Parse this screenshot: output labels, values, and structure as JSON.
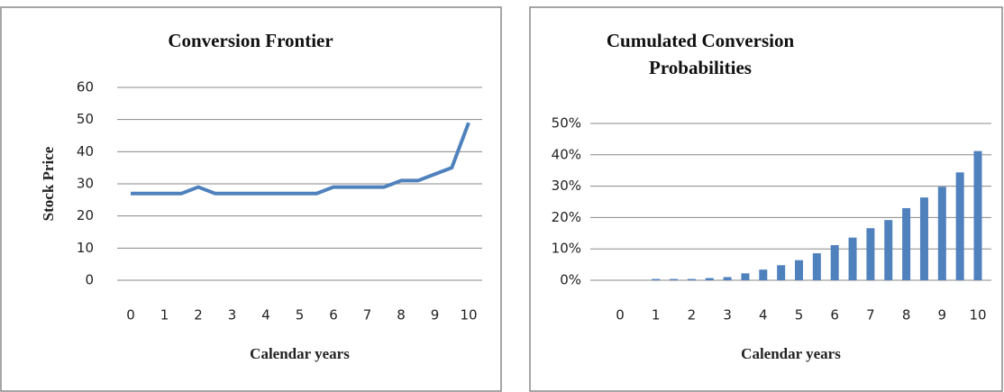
{
  "chart_data": [
    {
      "type": "line",
      "title": "Conversion Frontier",
      "x_label": "Calendar years",
      "y_label": "Stock Price",
      "x": [
        0,
        0.5,
        1,
        1.5,
        2,
        2.5,
        3,
        3.5,
        4,
        4.5,
        5,
        5.5,
        6,
        6.5,
        7,
        7.5,
        8,
        8.5,
        9,
        9.5,
        10
      ],
      "values": [
        27,
        27,
        27,
        27,
        29,
        27,
        27,
        27,
        27,
        27,
        27,
        27,
        29,
        29,
        29,
        29,
        31,
        31,
        33,
        35,
        49
      ],
      "color": "#4f81bd",
      "xlim": [
        0,
        10
      ],
      "xticks": [
        0,
        1,
        2,
        3,
        4,
        5,
        6,
        7,
        8,
        9,
        10
      ],
      "ylim": [
        0,
        60
      ],
      "yticks": [
        0,
        10,
        20,
        30,
        40,
        50,
        60
      ],
      "grid": true
    },
    {
      "type": "bar",
      "title": "Cumulated Conversion Probabilities",
      "x_label": "Calendar years",
      "x": [
        1,
        1.5,
        2,
        2.5,
        3,
        3.5,
        4,
        4.5,
        5,
        5.5,
        6,
        6.5,
        7,
        7.5,
        8,
        8.5,
        9,
        9.5,
        10
      ],
      "values": [
        0.4,
        0.4,
        0.4,
        0.7,
        1.0,
        2.2,
        3.4,
        4.8,
        6.4,
        8.6,
        11.2,
        13.6,
        16.6,
        19.2,
        23,
        26.4,
        29.8,
        34.4,
        41.2
      ],
      "color": "#4f81bd",
      "xlim": [
        0,
        10
      ],
      "xticks": [
        0,
        1,
        2,
        3,
        4,
        5,
        6,
        7,
        8,
        9,
        10
      ],
      "ylim": [
        0,
        50
      ],
      "yticks": [
        {
          "value": 0,
          "label": "0%"
        },
        {
          "value": 10,
          "label": "10%"
        },
        {
          "value": 20,
          "label": "20%"
        },
        {
          "value": 30,
          "label": "30%"
        },
        {
          "value": 40,
          "label": "40%"
        },
        {
          "value": 50,
          "label": "50%"
        }
      ],
      "grid": true
    }
  ]
}
